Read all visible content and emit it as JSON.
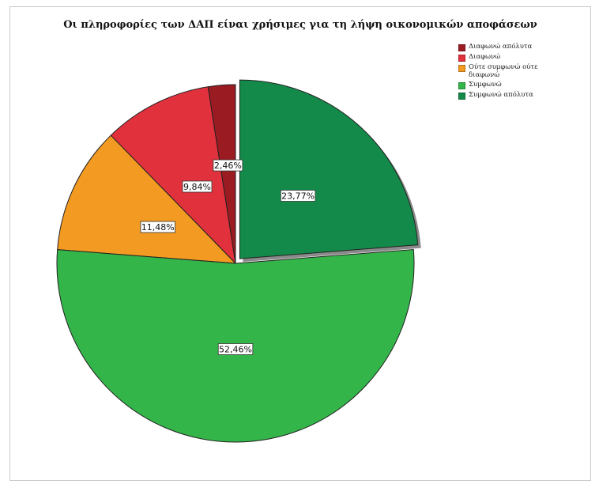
{
  "chart_data": {
    "type": "pie",
    "title": "Οι πληροφορίες των ΔΑΠ είναι χρήσιμες για τη λήψη οικονομικών αποφάσεων",
    "categories": [
      "Διαφωνώ απόλυτα",
      "Διαφωνώ",
      "Ούτε συμφωνώ ούτε διαφωνώ",
      "Συμφωνώ",
      "Συμφωνώ απόλυτα"
    ],
    "values": [
      2.46,
      9.84,
      11.48,
      52.46,
      23.77
    ],
    "data_labels": [
      "2,46%",
      "9,84%",
      "11,48%",
      "52,46%",
      "23,77%"
    ],
    "colors": [
      "#9b1b22",
      "#e0313c",
      "#f39a22",
      "#34b54a",
      "#138a4a"
    ],
    "start_angle_deg": 0,
    "direction": "counterclockwise",
    "legend_placement": "top-right",
    "exploded_slice": "Συμφωνώ απόλυτα"
  }
}
